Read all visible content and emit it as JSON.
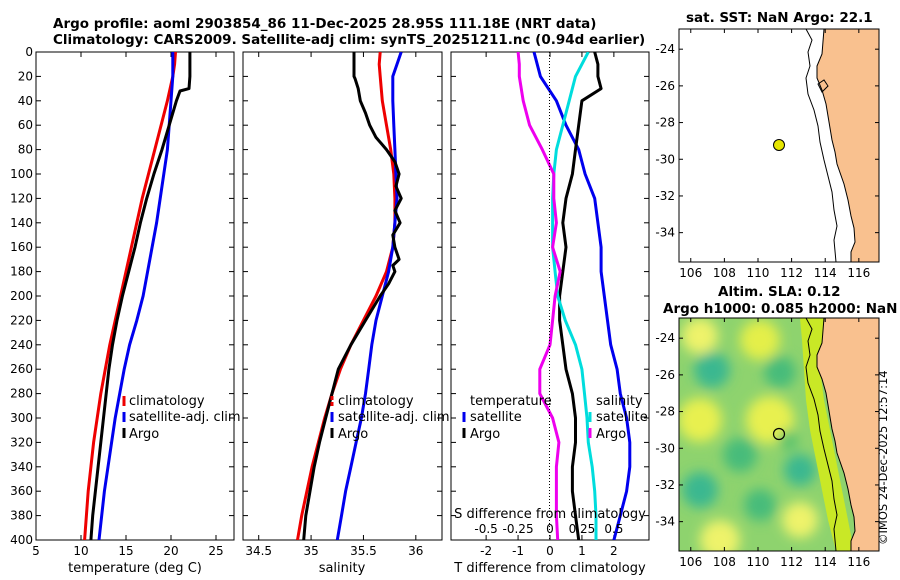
{
  "titles": {
    "line1": "Argo profile: aoml 2903854_86 11-Dec-2025 28.95S 111.18E (NRT data)",
    "line2": "Climatology: CARS2009. Satellite-adj clim: synTS_20251211.nc (0.94d earlier)",
    "sst": "sat. SST: NaN Argo: 22.1",
    "altim1": "Altim. SLA: 0.12",
    "altim2": "Argo h1000: 0.085 h2000: NaN"
  },
  "watermark": "©IMOS 24-Dec-2025 12:57:14",
  "colors": {
    "argo": "#000000",
    "climatology": "#ee0000",
    "satellite": "#0000ee",
    "salinity_clim": "#ee00ee",
    "salinity_sat": "#00dddd",
    "land": "#f9c18f"
  },
  "chart_data": [
    {
      "type": "line",
      "name": "temperature",
      "xlabel": "temperature (deg C)",
      "ylabel": "",
      "xlim": [
        5,
        27
      ],
      "ylim": [
        400,
        0
      ],
      "xticks": [
        5,
        10,
        15,
        20,
        25
      ],
      "yticks": [
        0,
        20,
        40,
        60,
        80,
        100,
        120,
        140,
        160,
        180,
        200,
        220,
        240,
        260,
        280,
        300,
        320,
        340,
        360,
        380,
        400
      ],
      "legend": [
        "climatology",
        "satellite-adj. clim",
        "Argo"
      ],
      "series": [
        {
          "name": "climatology",
          "color": "#ee0000",
          "depth": [
            0,
            10,
            20,
            40,
            60,
            80,
            100,
            120,
            140,
            160,
            180,
            200,
            220,
            240,
            260,
            280,
            300,
            320,
            340,
            360,
            380,
            400
          ],
          "values": [
            20.5,
            20.4,
            20.2,
            19.6,
            18.9,
            18.2,
            17.5,
            16.8,
            16.2,
            15.6,
            15.0,
            14.4,
            13.8,
            13.2,
            12.7,
            12.2,
            11.8,
            11.4,
            11.1,
            10.8,
            10.6,
            10.4
          ]
        },
        {
          "name": "satellite-adj. clim",
          "color": "#0000ee",
          "depth": [
            0,
            10,
            20,
            40,
            60,
            80,
            100,
            120,
            140,
            160,
            180,
            200,
            220,
            240,
            260,
            280,
            300,
            320,
            340,
            360,
            380,
            400
          ],
          "values": [
            20.2,
            20.2,
            20.2,
            20.0,
            19.8,
            19.6,
            19.2,
            18.8,
            18.4,
            17.9,
            17.4,
            16.9,
            16.2,
            15.4,
            14.8,
            14.3,
            13.8,
            13.4,
            13.0,
            12.6,
            12.3,
            12.0
          ]
        },
        {
          "name": "Argo",
          "color": "#000000",
          "depth": [
            0,
            10,
            20,
            30,
            32,
            40,
            60,
            80,
            100,
            120,
            140,
            160,
            180,
            200,
            220,
            240,
            260,
            280,
            300,
            320,
            340,
            360,
            380,
            400
          ],
          "values": [
            22.1,
            22.1,
            22.1,
            22.0,
            21.0,
            20.6,
            19.8,
            19.0,
            18.1,
            17.3,
            16.6,
            16.0,
            15.3,
            14.6,
            14.0,
            13.5,
            13.1,
            12.8,
            12.5,
            12.2,
            11.9,
            11.6,
            11.3,
            11.1
          ]
        }
      ]
    },
    {
      "type": "line",
      "name": "salinity",
      "xlabel": "salinity",
      "ylabel": "",
      "xlim": [
        34.35,
        36.25
      ],
      "ylim": [
        400,
        0
      ],
      "xticks": [
        34.5,
        35,
        35.5,
        36
      ],
      "xticklabels": [
        "34.5",
        "35",
        "35.5",
        "36"
      ],
      "legend": [
        "climatology",
        "satellite-adj. clim",
        "Argo"
      ],
      "series": [
        {
          "name": "climatology",
          "color": "#ee0000",
          "depth": [
            0,
            10,
            20,
            40,
            60,
            80,
            100,
            120,
            140,
            160,
            180,
            200,
            220,
            240,
            260,
            280,
            300,
            320,
            340,
            360,
            380,
            400
          ],
          "values": [
            35.66,
            35.65,
            35.66,
            35.68,
            35.72,
            35.76,
            35.79,
            35.8,
            35.8,
            35.78,
            35.72,
            35.62,
            35.5,
            35.38,
            35.28,
            35.2,
            35.13,
            35.07,
            35.01,
            34.96,
            34.91,
            34.87
          ]
        },
        {
          "name": "satellite-adj. clim",
          "color": "#0000ee",
          "depth": [
            0,
            10,
            20,
            40,
            60,
            80,
            100,
            120,
            140,
            160,
            180,
            200,
            220,
            240,
            260,
            280,
            300,
            320,
            340,
            360,
            380,
            400
          ],
          "values": [
            35.86,
            35.82,
            35.78,
            35.78,
            35.79,
            35.8,
            35.81,
            35.82,
            35.8,
            35.78,
            35.74,
            35.68,
            35.62,
            35.58,
            35.55,
            35.52,
            35.48,
            35.43,
            35.38,
            35.33,
            35.29,
            35.25
          ]
        },
        {
          "name": "Argo",
          "color": "#000000",
          "depth": [
            0,
            10,
            20,
            22,
            30,
            40,
            50,
            60,
            70,
            80,
            90,
            100,
            110,
            120,
            130,
            140,
            150,
            160,
            170,
            175,
            180,
            190,
            200,
            220,
            240,
            260,
            280,
            300,
            320,
            340,
            360,
            380,
            400
          ],
          "values": [
            35.41,
            35.41,
            35.41,
            35.42,
            35.45,
            35.47,
            35.52,
            35.56,
            35.62,
            35.72,
            35.8,
            35.84,
            35.81,
            35.86,
            35.8,
            35.85,
            35.78,
            35.8,
            35.84,
            35.78,
            35.8,
            35.74,
            35.66,
            35.52,
            35.38,
            35.26,
            35.2,
            35.14,
            35.08,
            35.03,
            34.99,
            34.95,
            34.93
          ]
        }
      ]
    },
    {
      "type": "line",
      "name": "difference from climatology",
      "xlabel": "T difference from climatology",
      "xlabel2": "S difference from climatology",
      "xlim": [
        -3.1,
        3.1
      ],
      "ylim": [
        400,
        0
      ],
      "xticks": [
        -2,
        -1,
        0,
        1,
        2
      ],
      "xticks_s": [
        -0.5,
        -0.25,
        0,
        0.25,
        0.5
      ],
      "xticklabels_s": [
        "-0.5",
        "-0.25",
        "0",
        "0.25",
        "0.5"
      ],
      "legend_temperature": {
        "title": "temperature",
        "items": [
          "satellite",
          "Argo"
        ]
      },
      "legend_salinity": {
        "title": "salinity",
        "items": [
          "satellite",
          "Argo"
        ]
      },
      "series": [
        {
          "name": "T satellite",
          "color": "#0000ee",
          "depth": [
            0,
            20,
            40,
            60,
            80,
            100,
            120,
            140,
            160,
            180,
            200,
            220,
            240,
            260,
            280,
            300,
            320,
            340,
            360,
            380,
            400
          ],
          "values": [
            -0.5,
            -0.3,
            0.2,
            0.5,
            0.9,
            1.1,
            1.4,
            1.5,
            1.6,
            1.6,
            1.7,
            1.8,
            1.9,
            2.1,
            2.2,
            2.4,
            2.5,
            2.5,
            2.4,
            2.2,
            2.0
          ]
        },
        {
          "name": "T Argo",
          "color": "#000000",
          "depth": [
            0,
            10,
            20,
            30,
            40,
            60,
            80,
            100,
            120,
            140,
            160,
            180,
            200,
            220,
            240,
            260,
            280,
            300,
            320,
            340,
            360,
            380,
            400
          ],
          "values": [
            1.4,
            1.5,
            1.5,
            1.6,
            1.0,
            0.9,
            0.8,
            0.7,
            0.5,
            0.4,
            0.5,
            0.4,
            0.3,
            0.3,
            0.4,
            0.5,
            0.7,
            0.8,
            0.8,
            0.7,
            0.7,
            0.8,
            0.9
          ]
        },
        {
          "name": "S satellite",
          "color": "#00dddd",
          "depth": [
            0,
            20,
            40,
            60,
            80,
            100,
            120,
            140,
            160,
            180,
            200,
            220,
            240,
            260,
            280,
            300,
            320,
            340,
            360,
            380,
            400
          ],
          "values": [
            0.3,
            0.2,
            0.15,
            0.1,
            0.05,
            0.03,
            0.02,
            0.02,
            0.02,
            0.04,
            0.06,
            0.12,
            0.2,
            0.25,
            0.27,
            0.29,
            0.3,
            0.33,
            0.35,
            0.36,
            0.36
          ]
        },
        {
          "name": "S Argo",
          "color": "#ee00ee",
          "depth": [
            0,
            10,
            20,
            40,
            60,
            80,
            100,
            120,
            140,
            160,
            180,
            200,
            220,
            240,
            260,
            280,
            300,
            320,
            340,
            360,
            380,
            400
          ],
          "values": [
            -0.25,
            -0.24,
            -0.24,
            -0.21,
            -0.16,
            -0.06,
            0.03,
            0.03,
            0.05,
            0.02,
            0.08,
            0.04,
            0.02,
            0.0,
            -0.08,
            -0.08,
            0.02,
            0.07,
            0.05,
            0.05,
            0.05,
            0.06
          ]
        }
      ]
    },
    {
      "type": "scatter",
      "name": "sst map",
      "xlim": [
        105.3,
        117.2
      ],
      "ylim": [
        -35.6,
        -22.9
      ],
      "xticks": [
        106,
        108,
        110,
        112,
        114,
        116
      ],
      "yticks": [
        -24,
        -26,
        -28,
        -30,
        -32,
        -34
      ],
      "points": [
        {
          "name": "Argo float",
          "x": 111.18,
          "y": -28.95
        }
      ]
    },
    {
      "type": "heatmap",
      "name": "altimetry map",
      "xlim": [
        105.3,
        117.2
      ],
      "ylim": [
        -35.6,
        -22.9
      ],
      "xticks": [
        106,
        108,
        110,
        112,
        114,
        116
      ],
      "yticks": [
        -24,
        -26,
        -28,
        -30,
        -32,
        -34
      ],
      "points": [
        {
          "name": "Argo float",
          "x": 111.18,
          "y": -28.95
        }
      ]
    }
  ]
}
